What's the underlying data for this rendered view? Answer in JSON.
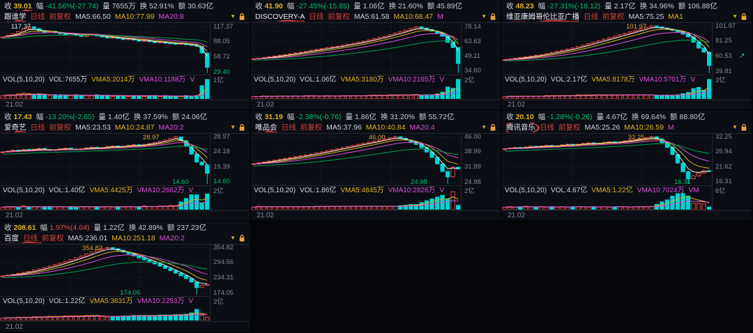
{
  "labels": {
    "close": "收",
    "chg": "幅",
    "vol": "量",
    "turn": "换",
    "amt": "额",
    "period": "日线",
    "adj": "前复权",
    "vol_title": "VOL(5,10,20)"
  },
  "date": "21.02",
  "colors": {
    "up_candle": "#e8483f",
    "down_candle": "#00d2d2",
    "ma5": "#e8e8e8",
    "ma10": "#e0b325",
    "ma20": "#d950d9",
    "ma_long": "#00a050",
    "text_up": "#e04b4b",
    "text_down": "#00c06a",
    "close_yellow": "#e0b325",
    "magenta": "#d94fd9",
    "red_annotation": "#d43c3c",
    "axis_text": "#828896",
    "grid_line": "#1e232c"
  },
  "panels": [
    {
      "name": "跟谁学",
      "mark": "underline",
      "mark_close": true,
      "stats": {
        "close": "39.01",
        "chg": "-41.56%(-27.74)",
        "dir": "dn",
        "vol": "7655万",
        "turn": "52.91%",
        "amt": "30.63亿"
      },
      "ma5": "MA5:66.50",
      "ma10": "MA10:77.99",
      "ma_tail": "MA20:8",
      "vol_val": "VOL:7655万",
      "vma5": "VMA5:2014万",
      "vma10": "VMA10:1188万",
      "vol_tail": "V",
      "vol_axis": "1亿",
      "axis": [
        {
          "v": 117.37,
          "t": "117.37"
        },
        {
          "v": 88.05,
          "t": "88.05"
        },
        {
          "v": 58.72,
          "t": "58.72"
        },
        {
          "v": 29.4,
          "t": "29.40",
          "c": "dn"
        }
      ],
      "ann": [
        {
          "t": "117.37",
          "v": 117.37,
          "x": 0.1,
          "c": "wh"
        }
      ],
      "chart": {
        "min": 25,
        "max": 125,
        "first_open": 96,
        "closes": [
          98,
          101,
          104,
          108,
          113,
          117.37,
          114,
          110,
          107,
          109,
          106,
          104,
          102,
          104,
          101,
          99,
          101,
          103,
          100,
          98,
          96,
          97,
          95,
          93,
          94,
          92,
          90,
          91,
          89,
          87,
          88,
          86,
          85,
          84,
          85,
          83,
          82,
          80,
          66.75,
          39.01
        ]
      }
    },
    {
      "name": "DISCOVERY-A",
      "mark": "underline",
      "mark_close": false,
      "stats": {
        "close": "41.90",
        "chg": "-27.45%(-15.85)",
        "dir": "dn",
        "vol": "1.06亿",
        "turn": "21.60%",
        "amt": "45.89亿"
      },
      "ma5": "MA5:61.58",
      "ma10": "MA10:68.47",
      "ma_tail": "M",
      "vol_val": "VOL:1.06亿",
      "vma5": "VMA5:3180万",
      "vma10": "VMA10:2165万",
      "vol_tail": "V",
      "vol_axis": "2亿",
      "axis": [
        {
          "v": 78.14,
          "t": "78.14"
        },
        {
          "v": 63.63,
          "t": "63.63"
        },
        {
          "v": 49.11,
          "t": "49.11"
        },
        {
          "v": 34.6,
          "t": "34.60"
        }
      ],
      "ann": [],
      "chart": {
        "min": 31,
        "max": 82,
        "first_open": 46,
        "closes": [
          46.5,
          47,
          47.8,
          48.5,
          49.2,
          50,
          50.8,
          51.5,
          52.3,
          53,
          54,
          55,
          55.8,
          56.5,
          57.5,
          58.3,
          59,
          60,
          61,
          62,
          63,
          64,
          65.2,
          66.5,
          67.8,
          69,
          70.5,
          72,
          73.5,
          75,
          76.5,
          78.14,
          77,
          75.5,
          74,
          72,
          69,
          63,
          57.75,
          41.9
        ]
      }
    },
    {
      "name": "维亚康姆哥伦比亚广播",
      "mark": "underline",
      "mark_close": false,
      "stats": {
        "close": "48.23",
        "chg": "-27.31%(-18.12)",
        "dir": "dn",
        "vol": "2.17亿",
        "turn": "34.96%",
        "amt": "106.88亿"
      },
      "ma5": "MA5:75.25",
      "ma10": "MA1",
      "ma_tail": "",
      "vol_val": "VOL:2.17亿",
      "vma5": "VMA5:8178万",
      "vma10": "VMA10:5701万",
      "vol_tail": "V",
      "vol_axis": "3亿",
      "axis": [
        {
          "v": 101.97,
          "t": "101.97"
        },
        {
          "v": 81.25,
          "t": "81.25"
        },
        {
          "v": 60.53,
          "t": "60.53",
          "icon": "expand"
        },
        {
          "v": 39.81,
          "t": "39.81"
        }
      ],
      "ann": [
        {
          "t": "101.97",
          "v": 101.97,
          "x": 0.64,
          "c": "hi"
        }
      ],
      "chart": {
        "min": 36,
        "max": 106,
        "first_open": 55.5,
        "closes": [
          56,
          57,
          58,
          59,
          60,
          61,
          62,
          63,
          64.5,
          66,
          67.5,
          69,
          70.5,
          72,
          74,
          76,
          78,
          80,
          82,
          84,
          86,
          88,
          90,
          92,
          94,
          96,
          98,
          100,
          101.97,
          100.5,
          99,
          97.5,
          96,
          94,
          91,
          87,
          80,
          72,
          66.35,
          48.23
        ]
      }
    },
    {
      "name": "爱奇艺",
      "mark": "underline",
      "mark_close": false,
      "stats": {
        "close": "17.43",
        "chg": "-13.20%(-2.65)",
        "dir": "dn",
        "vol": "1.40亿",
        "turn": "37.59%",
        "amt": "24.06亿"
      },
      "ma5": "MA5:23.53",
      "ma10": "MA10:24.87",
      "ma_tail": "MA20:2",
      "vol_val": "VOL:1.40亿",
      "vma5": "VMA5:4425万",
      "vma10": "VMA10:2662万",
      "vol_tail": "V",
      "vol_axis": "2亿",
      "axis": [
        {
          "v": 28.97,
          "t": "28.97"
        },
        {
          "v": 24.18,
          "t": "24.18"
        },
        {
          "v": 19.39,
          "t": "19.39"
        },
        {
          "v": 14.6,
          "t": "14.60",
          "c": "dn"
        }
      ],
      "ann": [
        {
          "t": "28.97",
          "v": 28.97,
          "x": 0.72,
          "c": "hi"
        },
        {
          "t": "14.60",
          "v": 15.6,
          "x": 0.86,
          "c": "dn"
        }
      ],
      "chart": {
        "min": 13.6,
        "max": 30,
        "first_open": 24,
        "closes": [
          24.2,
          24.5,
          24.8,
          24.6,
          25.0,
          24.8,
          25.1,
          25.3,
          25.0,
          24.7,
          24.9,
          25.2,
          25.4,
          25.1,
          24.9,
          25.2,
          25.5,
          25.7,
          25.4,
          25.6,
          25.9,
          26.1,
          25.8,
          26.0,
          26.3,
          26.5,
          26.2,
          26.6,
          26.9,
          27.2,
          27.6,
          28.0,
          28.5,
          28.97,
          27.8,
          26.0,
          23.5,
          21.0,
          20.08,
          17.43
        ]
      }
    },
    {
      "name": "唯品会",
      "mark": "underline",
      "mark_close": false,
      "stats": {
        "close": "31.19",
        "chg": "-2.38%(-0.76)",
        "dir": "dn",
        "vol": "1.86亿",
        "turn": "31.20%",
        "amt": "55.72亿"
      },
      "ma5": "MA5:37.96",
      "ma10": "MA10:40.84",
      "ma_tail": "MA20:4",
      "vol_val": "VOL:1.86亿",
      "vma5": "VMA5:4845万",
      "vma10": "VMA10:2826万",
      "vol_tail": "V",
      "vol_axis": "2亿",
      "axis": [
        {
          "v": 46.0,
          "t": "46.00"
        },
        {
          "v": 38.99,
          "t": "38.99"
        },
        {
          "v": 31.99,
          "t": "31.99"
        },
        {
          "v": 24.98,
          "t": "24.98"
        }
      ],
      "ann": [
        {
          "t": "46.00",
          "v": 46.0,
          "x": 0.6,
          "c": "hi"
        },
        {
          "t": "24.98",
          "v": 26.0,
          "x": 0.8,
          "c": "dn"
        }
      ],
      "chart": {
        "min": 23.6,
        "max": 47.4,
        "first_open": 33.2,
        "closes": [
          33.5,
          34,
          34.4,
          34.8,
          35.2,
          35.6,
          36,
          36.4,
          36.8,
          37.2,
          37.6,
          38,
          38.5,
          39,
          39.5,
          40,
          40.5,
          41,
          41.5,
          42,
          42.5,
          43,
          43.5,
          44,
          44.5,
          45,
          45.5,
          46.0,
          45.3,
          44.5,
          43.5,
          42.5,
          41,
          39,
          36.5,
          33.5,
          30,
          27.5,
          31.95,
          31.19
        ]
      }
    },
    {
      "name": "腾讯音乐",
      "mark": "circle",
      "mark_close": false,
      "stats": {
        "close": "20.10",
        "chg": "-1.28%(-0.26)",
        "dir": "dn",
        "vol": "4.67亿",
        "turn": "69.64%",
        "amt": "88.80亿"
      },
      "ma5": "MA5:25.26",
      "ma10": "MA10:26.59",
      "ma_tail": "M",
      "vol_val": "VOL:4.67亿",
      "vma5": "VMA5:1.22亿",
      "vma10": "VMA10:7024万",
      "vol_tail": "VM",
      "vol_axis": "6亿",
      "axis": [
        {
          "v": 32.25,
          "t": "32.25"
        },
        {
          "v": 26.94,
          "t": "26.94"
        },
        {
          "v": 21.62,
          "t": "21.62"
        },
        {
          "v": 16.31,
          "t": "16.31"
        }
      ],
      "ann": [
        {
          "t": "32.25",
          "v": 32.25,
          "x": 0.64,
          "c": "hi"
        },
        {
          "t": "16.31",
          "v": 17.2,
          "x": 0.86,
          "c": "dn"
        }
      ],
      "chart": {
        "min": 15.2,
        "max": 33.3,
        "first_open": 27.8,
        "closes": [
          28,
          28.3,
          28.5,
          28.2,
          28.6,
          28.9,
          28.7,
          29,
          29.2,
          28.9,
          29.1,
          29.4,
          29.6,
          29.3,
          29.6,
          29.9,
          30.1,
          29.8,
          30,
          30.3,
          30.5,
          30.2,
          30.5,
          30.8,
          31,
          31.3,
          31.6,
          31.9,
          32.25,
          31.5,
          30.2,
          28.5,
          26,
          23,
          20,
          17.5,
          18.5,
          19.5,
          20.36,
          20.1
        ]
      }
    },
    {
      "name": "百度",
      "mark": "underline-long",
      "mark_close": false,
      "stats": {
        "close": "208.61",
        "chg": "1.97%(4.04)",
        "dir": "up",
        "vol": "1.22亿",
        "turn": "42.89%",
        "amt": "237.23亿"
      },
      "ma5": "MA5:236.01",
      "ma10": "MA10:251.18",
      "ma_tail": "MA20:2",
      "vol_val": "VOL:1.22亿",
      "vma5": "VMA5:3631万",
      "vma10": "VMA10:2253万",
      "vol_tail": "V",
      "vol_axis": "2亿",
      "axis": [
        {
          "v": 354.82,
          "t": "354.82"
        },
        {
          "v": 294.56,
          "t": "294.56"
        },
        {
          "v": 234.31,
          "t": "234.31"
        },
        {
          "v": 174.05,
          "t": "174.05"
        }
      ],
      "ann": [
        {
          "t": "354.82",
          "v": 354.82,
          "x": 0.44,
          "c": "hi"
        },
        {
          "t": "174.05",
          "v": 182,
          "x": 0.62,
          "c": "dn"
        }
      ],
      "chart": {
        "min": 162,
        "max": 367,
        "first_open": 240,
        "closes": [
          242,
          245,
          248,
          252,
          256,
          260,
          265,
          270,
          275,
          281,
          287,
          293,
          300,
          307,
          314,
          321,
          329,
          337,
          345,
          351,
          354.82,
          350,
          344,
          337,
          330,
          322,
          314,
          306,
          298,
          290,
          281,
          272,
          263,
          253,
          243,
          232,
          218,
          196,
          204.57,
          208.61
        ]
      }
    }
  ]
}
